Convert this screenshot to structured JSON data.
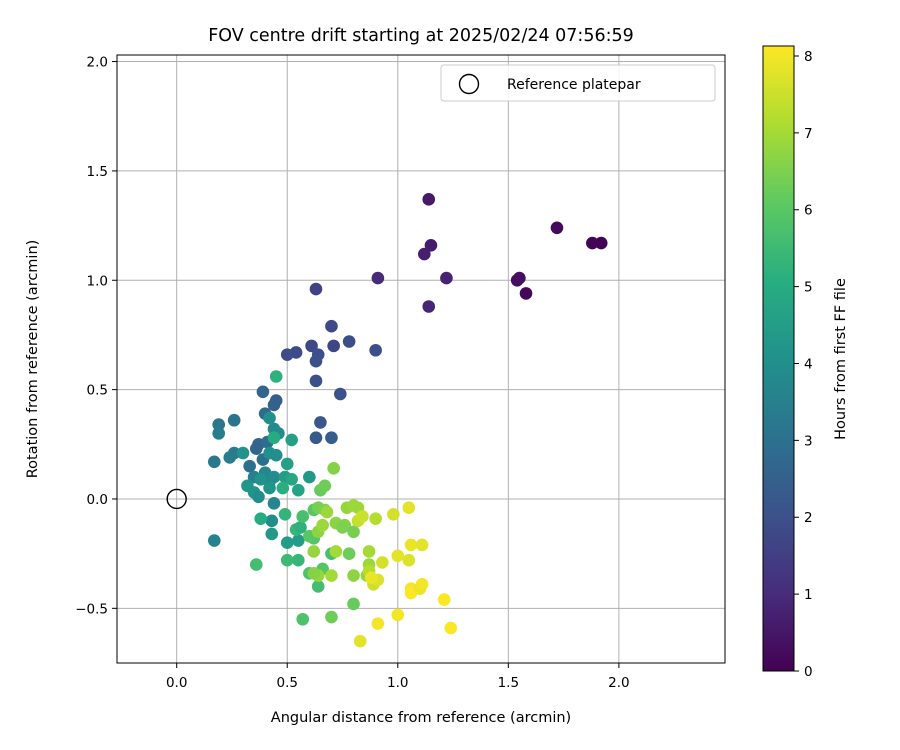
{
  "chart_data": {
    "type": "scatter",
    "title": "FOV centre drift starting at 2025/02/24 07:56:59",
    "xlabel": "Angular distance from reference (arcmin)",
    "ylabel": "Rotation from reference (arcmin)",
    "xlim": [
      -0.27,
      2.48
    ],
    "ylim": [
      -0.75,
      2.03
    ],
    "xticks": [
      0.0,
      0.5,
      1.0,
      1.5,
      2.0
    ],
    "xtick_labels": [
      "0.0",
      "0.5",
      "1.0",
      "1.5",
      "2.0"
    ],
    "yticks": [
      -0.5,
      0.0,
      0.5,
      1.0,
      1.5,
      2.0
    ],
    "ytick_labels": [
      "−0.5",
      "0.0",
      "0.5",
      "1.0",
      "1.5",
      "2.0"
    ],
    "grid": true,
    "legend": {
      "placement": "upper right",
      "entries": [
        "Reference platepar"
      ]
    },
    "reference_point": {
      "x": 0.0,
      "y": 0.0,
      "label": "Reference platepar"
    },
    "colorbar": {
      "label": "Hours from first FF file",
      "colormap": "viridis",
      "range": [
        0,
        8.13
      ],
      "ticks": [
        0,
        1,
        2,
        3,
        4,
        5,
        6,
        7,
        8
      ],
      "tick_labels": [
        "0",
        "1",
        "2",
        "3",
        "4",
        "5",
        "6",
        "7",
        "8"
      ]
    },
    "points": [
      [
        1.92,
        1.17,
        0.05
      ],
      [
        1.88,
        1.17,
        0.1
      ],
      [
        1.58,
        0.94,
        0.15
      ],
      [
        1.72,
        1.24,
        0.2
      ],
      [
        1.54,
        1.0,
        0.3
      ],
      [
        1.55,
        1.01,
        0.35
      ],
      [
        1.14,
        1.37,
        0.55
      ],
      [
        1.15,
        1.16,
        0.65
      ],
      [
        1.12,
        1.12,
        0.7
      ],
      [
        1.22,
        1.01,
        0.8
      ],
      [
        1.14,
        0.88,
        0.85
      ],
      [
        0.91,
        1.01,
        0.95
      ],
      [
        0.63,
        0.96,
        1.6
      ],
      [
        0.7,
        0.79,
        1.8
      ],
      [
        0.78,
        0.72,
        1.9
      ],
      [
        0.9,
        0.68,
        1.95
      ],
      [
        0.71,
        0.7,
        1.7
      ],
      [
        0.61,
        0.7,
        1.75
      ],
      [
        0.54,
        0.67,
        1.85
      ],
      [
        0.5,
        0.66,
        1.9
      ],
      [
        0.64,
        0.66,
        1.95
      ],
      [
        0.63,
        0.63,
        2.0
      ],
      [
        0.63,
        0.54,
        2.0
      ],
      [
        0.74,
        0.48,
        2.05
      ],
      [
        0.65,
        0.35,
        2.2
      ],
      [
        0.7,
        0.28,
        2.4
      ],
      [
        0.63,
        0.28,
        2.3
      ],
      [
        0.45,
        0.45,
        2.4
      ],
      [
        0.44,
        0.43,
        2.5
      ],
      [
        0.39,
        0.49,
        2.6
      ],
      [
        0.4,
        0.39,
        2.8
      ],
      [
        0.37,
        0.25,
        2.7
      ],
      [
        0.36,
        0.23,
        2.6
      ],
      [
        0.41,
        0.26,
        2.9
      ],
      [
        0.39,
        0.18,
        3.0
      ],
      [
        0.33,
        0.15,
        3.0
      ],
      [
        0.26,
        0.36,
        3.1
      ],
      [
        0.19,
        0.34,
        3.2
      ],
      [
        0.19,
        0.3,
        3.4
      ],
      [
        0.26,
        0.21,
        3.3
      ],
      [
        0.24,
        0.19,
        3.4
      ],
      [
        0.17,
        0.17,
        3.2
      ],
      [
        0.17,
        -0.19,
        3.6
      ],
      [
        0.44,
        0.32,
        3.8
      ],
      [
        0.42,
        0.37,
        4.0
      ],
      [
        0.46,
        0.3,
        3.9
      ],
      [
        0.42,
        0.21,
        4.0
      ],
      [
        0.45,
        0.2,
        4.0
      ],
      [
        0.3,
        0.21,
        4.1
      ],
      [
        0.35,
        0.1,
        3.5
      ],
      [
        0.4,
        0.12,
        3.7
      ],
      [
        0.42,
        0.08,
        3.8
      ],
      [
        0.44,
        0.1,
        3.9
      ],
      [
        0.38,
        0.09,
        4.1
      ],
      [
        0.32,
        0.06,
        4.2
      ],
      [
        0.35,
        0.03,
        4.2
      ],
      [
        0.37,
        0.01,
        3.9
      ],
      [
        0.42,
        0.05,
        4.2
      ],
      [
        0.44,
        -0.02,
        3.7
      ],
      [
        0.43,
        -0.1,
        3.9
      ],
      [
        0.49,
        0.1,
        4.5
      ],
      [
        0.5,
        0.16,
        4.6
      ],
      [
        0.52,
        0.09,
        4.8
      ],
      [
        0.55,
        0.04,
        4.7
      ],
      [
        0.6,
        0.1,
        4.3
      ],
      [
        0.43,
        -0.16,
        4.3
      ],
      [
        0.5,
        -0.2,
        4.4
      ],
      [
        0.55,
        -0.19,
        4.5
      ],
      [
        0.52,
        0.27,
        4.6
      ],
      [
        0.45,
        0.56,
        5.2
      ],
      [
        0.38,
        -0.09,
        5.0
      ],
      [
        0.48,
        0.05,
        5.1
      ],
      [
        0.44,
        0.28,
        5.0
      ],
      [
        0.49,
        -0.07,
        5.3
      ],
      [
        0.54,
        -0.14,
        5.4
      ],
      [
        0.56,
        -0.13,
        5.2
      ],
      [
        0.36,
        -0.3,
        5.6
      ],
      [
        0.5,
        -0.28,
        5.5
      ],
      [
        0.55,
        -0.28,
        5.4
      ],
      [
        0.57,
        -0.08,
        5.7
      ],
      [
        0.57,
        -0.55,
        5.8
      ],
      [
        0.64,
        -0.4,
        5.6
      ],
      [
        0.66,
        -0.32,
        5.9
      ],
      [
        0.7,
        -0.25,
        5.7
      ],
      [
        0.6,
        -0.34,
        5.8
      ],
      [
        0.62,
        -0.18,
        5.9
      ],
      [
        0.6,
        -0.17,
        6.0
      ],
      [
        0.62,
        -0.05,
        6.0
      ],
      [
        0.65,
        0.04,
        6.2
      ],
      [
        0.67,
        0.06,
        6.3
      ],
      [
        0.64,
        -0.04,
        6.4
      ],
      [
        0.67,
        -0.05,
        6.5
      ],
      [
        0.71,
        0.14,
        6.6
      ],
      [
        0.72,
        -0.11,
        6.7
      ],
      [
        0.76,
        -0.12,
        6.6
      ],
      [
        0.77,
        -0.04,
        6.8
      ],
      [
        0.8,
        -0.03,
        6.9
      ],
      [
        0.82,
        -0.04,
        6.9
      ],
      [
        0.75,
        -0.13,
        6.5
      ],
      [
        0.8,
        -0.35,
        6.7
      ],
      [
        0.86,
        -0.35,
        6.8
      ],
      [
        0.87,
        -0.3,
        6.9
      ],
      [
        0.8,
        -0.48,
        6.2
      ],
      [
        0.7,
        -0.54,
        6.3
      ],
      [
        0.64,
        -0.35,
        6.8
      ],
      [
        0.7,
        -0.35,
        7.0
      ],
      [
        0.62,
        -0.34,
        6.6
      ],
      [
        0.62,
        -0.24,
        6.8
      ],
      [
        0.64,
        -0.15,
        6.7
      ],
      [
        0.66,
        -0.12,
        6.9
      ],
      [
        0.68,
        -0.06,
        6.9
      ],
      [
        0.72,
        -0.24,
        7.0
      ],
      [
        0.78,
        -0.25,
        6.3
      ],
      [
        0.8,
        -0.15,
        6.4
      ],
      [
        0.87,
        -0.24,
        7.0
      ],
      [
        0.87,
        -0.33,
        7.2
      ],
      [
        0.9,
        -0.37,
        7.4
      ],
      [
        0.89,
        -0.39,
        7.5
      ],
      [
        0.91,
        -0.37,
        7.7
      ],
      [
        0.93,
        -0.29,
        7.6
      ],
      [
        0.83,
        -0.65,
        7.8
      ],
      [
        0.91,
        -0.57,
        8.0
      ],
      [
        0.88,
        -0.36,
        7.9
      ],
      [
        0.82,
        -0.1,
        7.4
      ],
      [
        0.84,
        -0.08,
        7.5
      ],
      [
        0.9,
        -0.09,
        7.2
      ],
      [
        0.98,
        -0.07,
        7.6
      ],
      [
        1.05,
        -0.04,
        7.8
      ],
      [
        1.0,
        -0.26,
        7.8
      ],
      [
        1.05,
        -0.28,
        7.7
      ],
      [
        1.06,
        -0.21,
        7.9
      ],
      [
        1.11,
        -0.21,
        7.8
      ],
      [
        1.06,
        -0.41,
        8.0
      ],
      [
        1.06,
        -0.43,
        8.1
      ],
      [
        1.1,
        -0.41,
        7.9
      ],
      [
        1.11,
        -0.39,
        8.0
      ],
      [
        1.0,
        -0.53,
        8.0
      ],
      [
        1.21,
        -0.46,
        8.1
      ],
      [
        1.24,
        -0.59,
        8.1
      ]
    ]
  }
}
